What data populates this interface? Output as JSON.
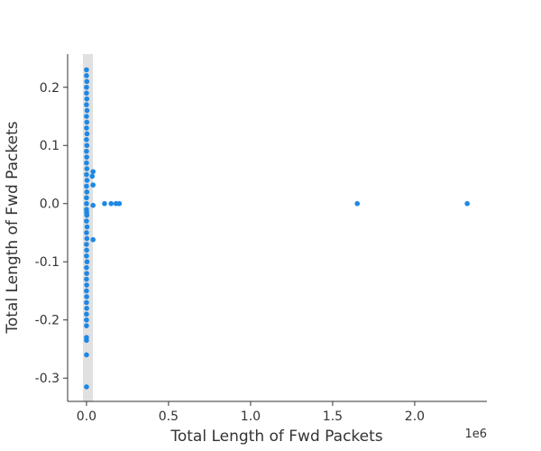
{
  "chart_data": {
    "type": "scatter",
    "x_label": "Total Length of Fwd Packets",
    "y_label": "Total Length of Fwd Packets",
    "x_offset_label": "1e6",
    "color": "#1e88e5",
    "x": [
      0,
      0,
      0,
      0,
      0,
      0,
      0,
      0,
      0,
      0,
      0,
      0,
      0,
      0,
      0,
      0,
      0,
      0,
      0,
      0,
      0,
      0,
      0,
      0,
      0,
      0,
      0,
      0,
      0,
      0,
      0.002,
      0.002,
      0.002,
      0.002,
      0.002,
      0.002,
      0.002,
      0.002,
      0.003,
      0.003,
      0.003,
      0.003,
      0.003,
      0.001,
      0.001,
      0.001,
      0.001,
      0.001,
      0.001,
      0.001,
      0.04,
      0.035,
      0.04,
      0.04,
      0.04,
      0.11,
      0.15,
      0.18,
      0.2,
      1.65,
      2.32
    ],
    "y": [
      0.23,
      0.22,
      0.2,
      0.19,
      0.17,
      0.15,
      0.13,
      0.11,
      0.09,
      0.07,
      0.05,
      0.03,
      0.01,
      -0.01,
      -0.03,
      -0.05,
      -0.07,
      -0.09,
      -0.11,
      -0.13,
      -0.15,
      -0.17,
      -0.19,
      -0.2,
      -0.21,
      -0.23,
      -0.235,
      -0.26,
      -0.315,
      0.0,
      0.21,
      0.18,
      0.14,
      0.1,
      0.06,
      0.02,
      -0.02,
      -0.06,
      0.16,
      0.12,
      0.04,
      -0.04,
      -0.1,
      -0.08,
      -0.12,
      -0.14,
      -0.16,
      -0.18,
      0.08,
      -0.015,
      0.055,
      0.047,
      0.032,
      -0.003,
      -0.062,
      0.0,
      0.0,
      0.0,
      0.0,
      0.0,
      0.0
    ],
    "xlim": [
      -0.115,
      2.44
    ],
    "ylim": [
      -0.34,
      0.257
    ],
    "xticks": [
      {
        "value": 0,
        "label": "0.0"
      },
      0.5,
      {
        "value": 1,
        "label": "1.0"
      },
      1.5,
      {
        "value": 2,
        "label": "2.0"
      }
    ],
    "yticks": [
      0.2,
      0.1,
      {
        "value": 0,
        "label": "0.0"
      },
      -0.1,
      -0.2,
      -0.3
    ]
  }
}
